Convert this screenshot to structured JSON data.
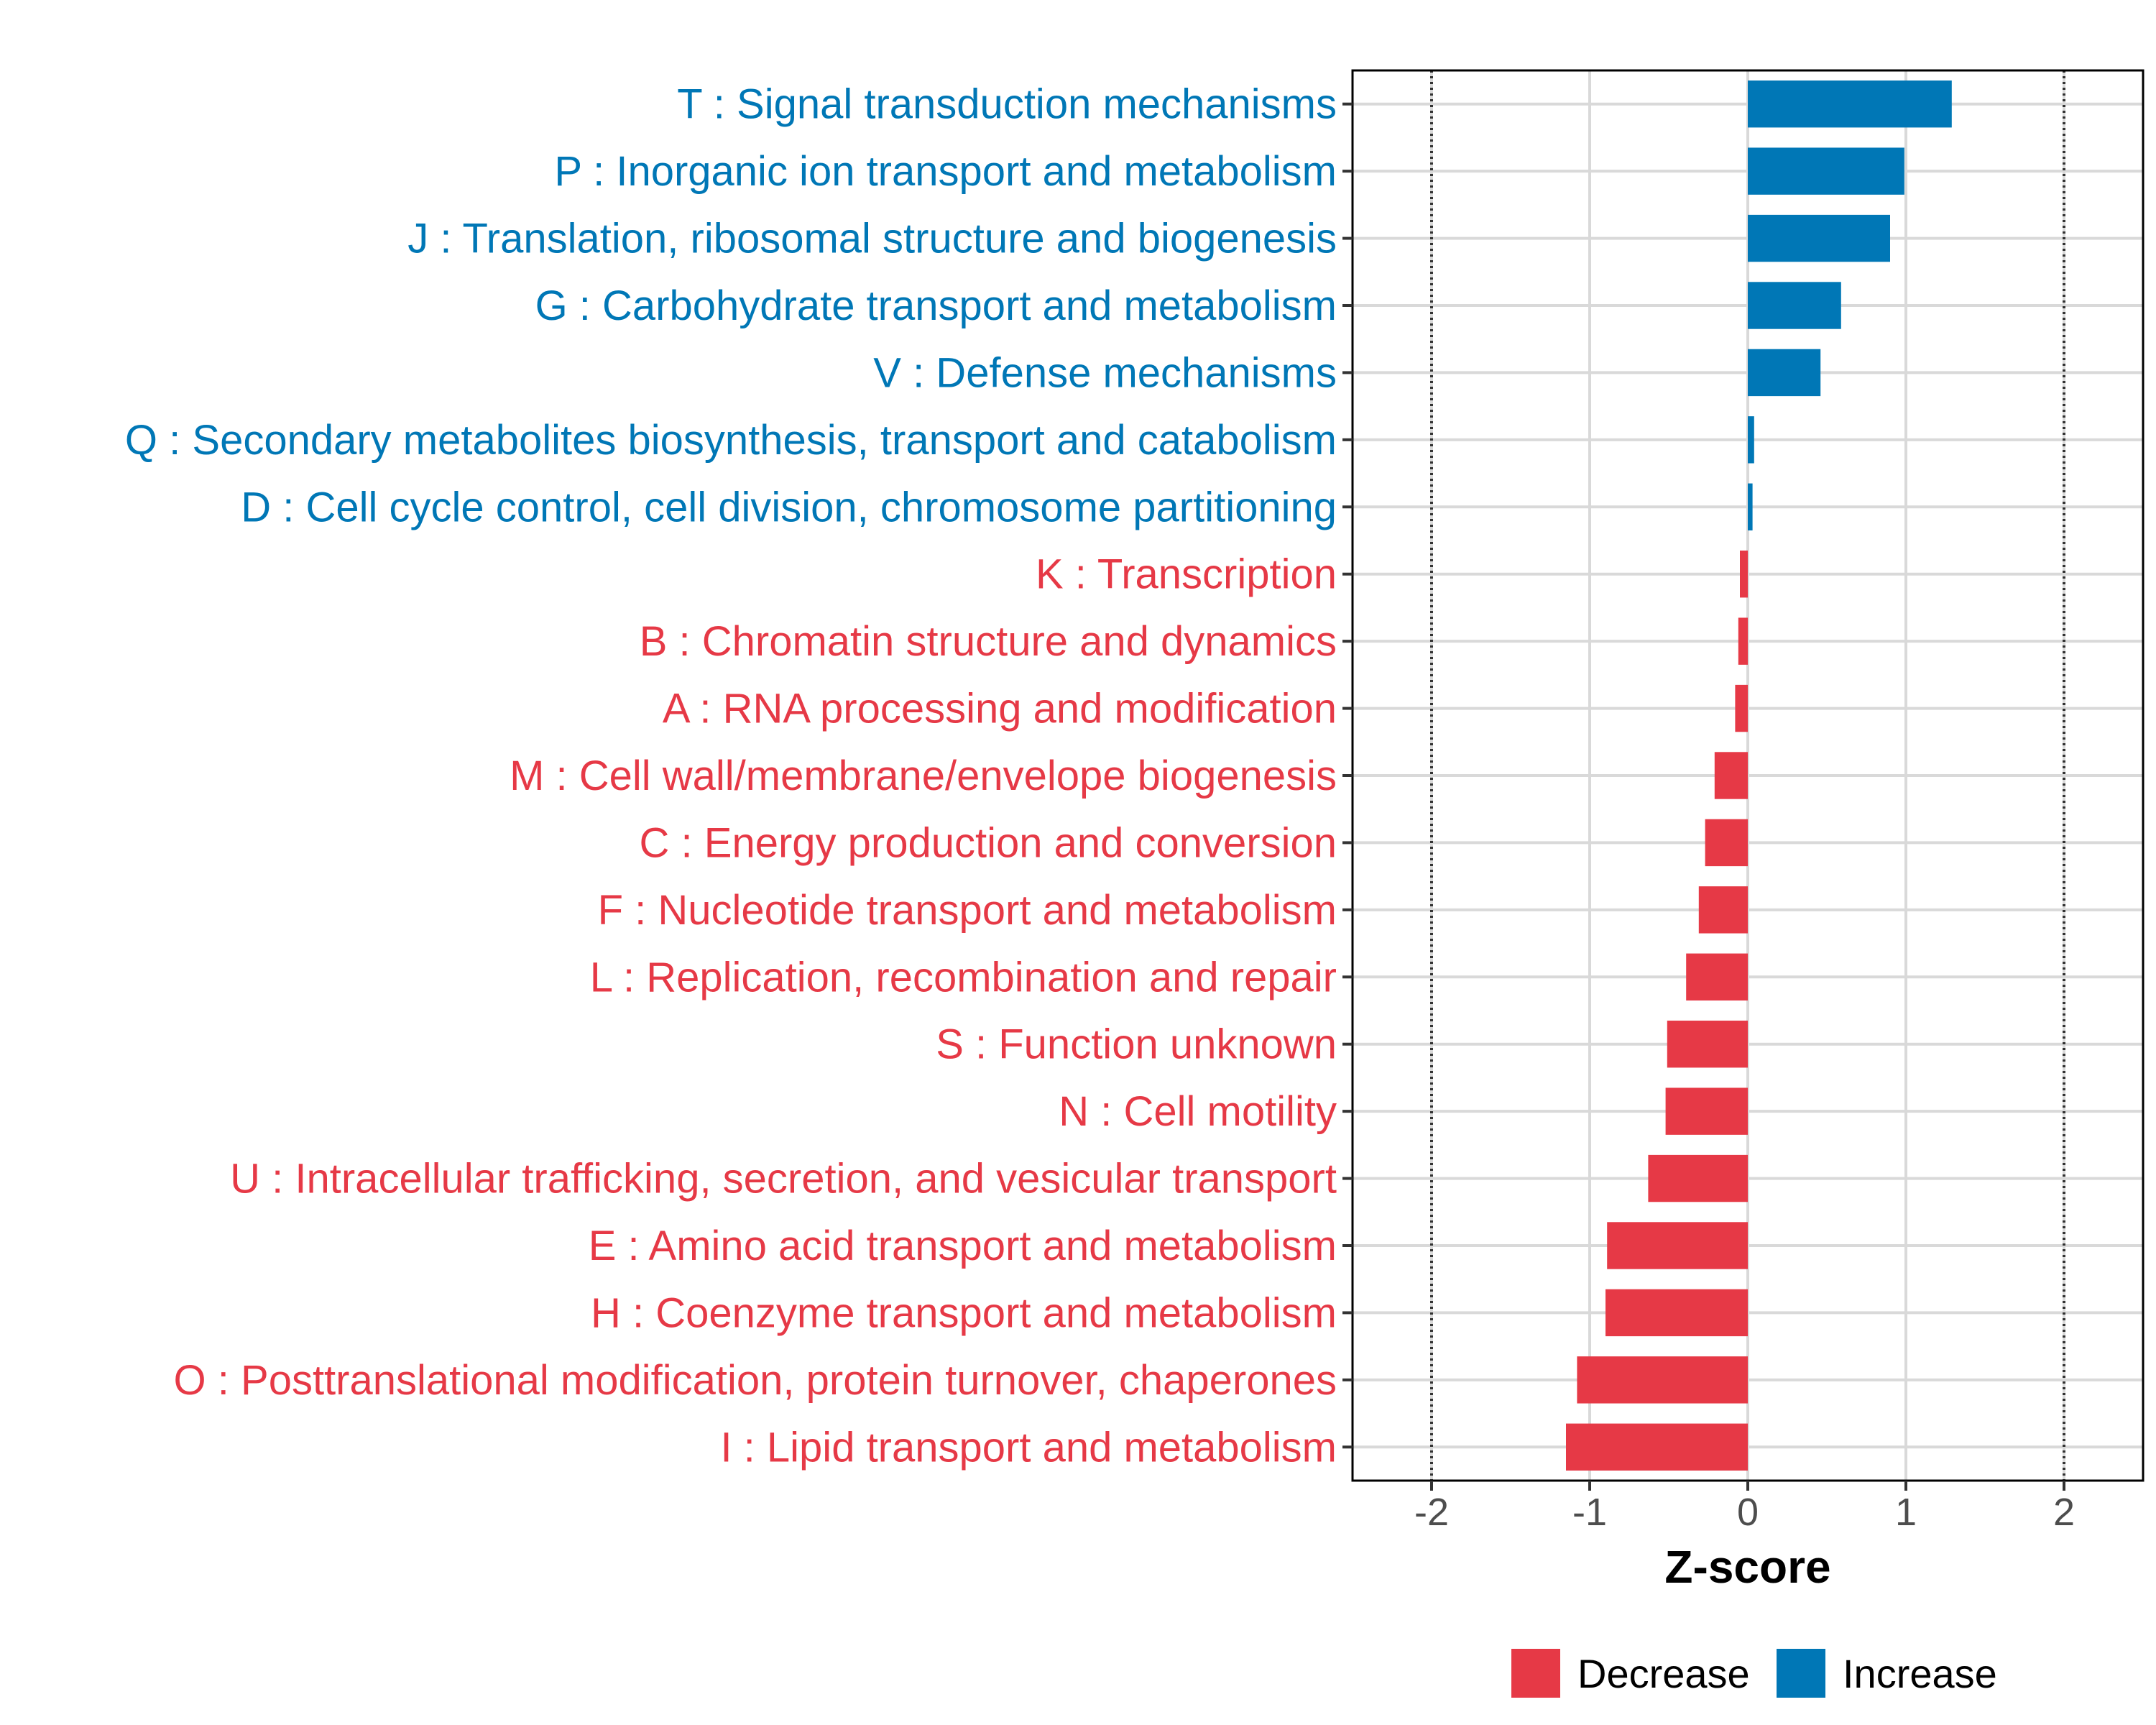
{
  "chart_data": {
    "type": "bar",
    "orientation": "horizontal",
    "xlabel": "Z-score",
    "xlim": [
      -2.5,
      2.5
    ],
    "x_ticks": [
      "-2",
      "-1",
      "0",
      "1",
      "2"
    ],
    "x_tick_values": [
      -2,
      -1,
      0,
      1,
      2
    ],
    "reference_lines": [
      -2,
      2
    ],
    "grid": true,
    "categories": [
      {
        "label": "T : Signal transduction mechanisms",
        "value": 1.29,
        "group": "Increase"
      },
      {
        "label": "P : Inorganic ion transport and metabolism",
        "value": 0.99,
        "group": "Increase"
      },
      {
        "label": "J : Translation, ribosomal structure and biogenesis",
        "value": 0.9,
        "group": "Increase"
      },
      {
        "label": "G : Carbohydrate transport and metabolism",
        "value": 0.59,
        "group": "Increase"
      },
      {
        "label": "V : Defense mechanisms",
        "value": 0.46,
        "group": "Increase"
      },
      {
        "label": "Q : Secondary metabolites biosynthesis, transport and catabolism",
        "value": 0.04,
        "group": "Increase"
      },
      {
        "label": "D : Cell cycle control, cell division, chromosome partitioning",
        "value": 0.03,
        "group": "Increase"
      },
      {
        "label": "K : Transcription",
        "value": -0.05,
        "group": "Decrease"
      },
      {
        "label": "B : Chromatin structure and dynamics",
        "value": -0.06,
        "group": "Decrease"
      },
      {
        "label": "A : RNA processing and modification",
        "value": -0.08,
        "group": "Decrease"
      },
      {
        "label": "M : Cell wall/membrane/envelope biogenesis",
        "value": -0.21,
        "group": "Decrease"
      },
      {
        "label": "C : Energy production and conversion",
        "value": -0.27,
        "group": "Decrease"
      },
      {
        "label": "F : Nucleotide transport and metabolism",
        "value": -0.31,
        "group": "Decrease"
      },
      {
        "label": "L : Replication, recombination and repair",
        "value": -0.39,
        "group": "Decrease"
      },
      {
        "label": "S : Function unknown",
        "value": -0.51,
        "group": "Decrease"
      },
      {
        "label": "N : Cell motility",
        "value": -0.52,
        "group": "Decrease"
      },
      {
        "label": "U : Intracellular trafficking, secretion, and vesicular transport",
        "value": -0.63,
        "group": "Decrease"
      },
      {
        "label": "E : Amino acid transport and metabolism",
        "value": -0.89,
        "group": "Decrease"
      },
      {
        "label": "H : Coenzyme transport and metabolism",
        "value": -0.9,
        "group": "Decrease"
      },
      {
        "label": "O : Posttranslational modification, protein turnover, chaperones",
        "value": -1.08,
        "group": "Decrease"
      },
      {
        "label": "I : Lipid transport and metabolism",
        "value": -1.15,
        "group": "Decrease"
      }
    ],
    "legend": {
      "position": "bottom",
      "entries": [
        {
          "label": "Decrease",
          "color": "#E63946"
        },
        {
          "label": "Increase",
          "color": "#0077B6"
        }
      ]
    },
    "colors": {
      "Decrease": "#E63946",
      "Increase": "#0077B6"
    }
  }
}
